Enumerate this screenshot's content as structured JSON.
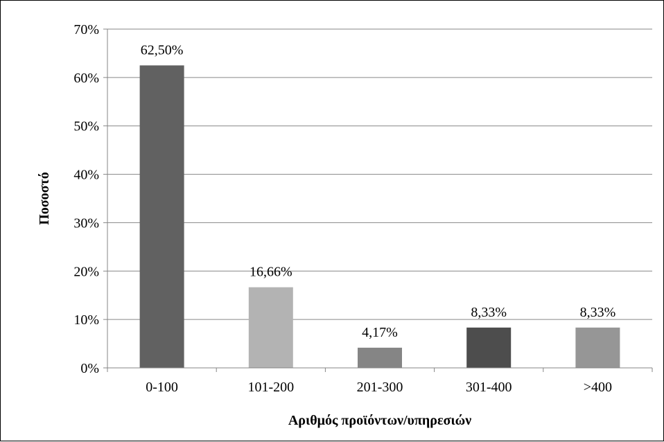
{
  "chart_data": {
    "type": "bar",
    "title": "",
    "xlabel": "Αριθμός προϊόντων/υπηρεσιών",
    "ylabel": "Ποσοστό",
    "categories": [
      "0-100",
      "101-200",
      "201-300",
      "301-400",
      ">400"
    ],
    "values": [
      62.5,
      16.66,
      4.17,
      8.33,
      8.33
    ],
    "data_labels": [
      "62,50%",
      "16,66%",
      "4,17%",
      "8,33%",
      "8,33%"
    ],
    "bar_colors": [
      "#616161",
      "#b3b3b3",
      "#858585",
      "#4d4d4d",
      "#969696"
    ],
    "ylim": [
      0,
      70
    ],
    "yticks": [
      0,
      10,
      20,
      30,
      40,
      50,
      60,
      70
    ],
    "ytick_labels": [
      "0%",
      "10%",
      "20%",
      "30%",
      "40%",
      "50%",
      "60%",
      "70%"
    ],
    "grid": true,
    "legend": "none"
  }
}
